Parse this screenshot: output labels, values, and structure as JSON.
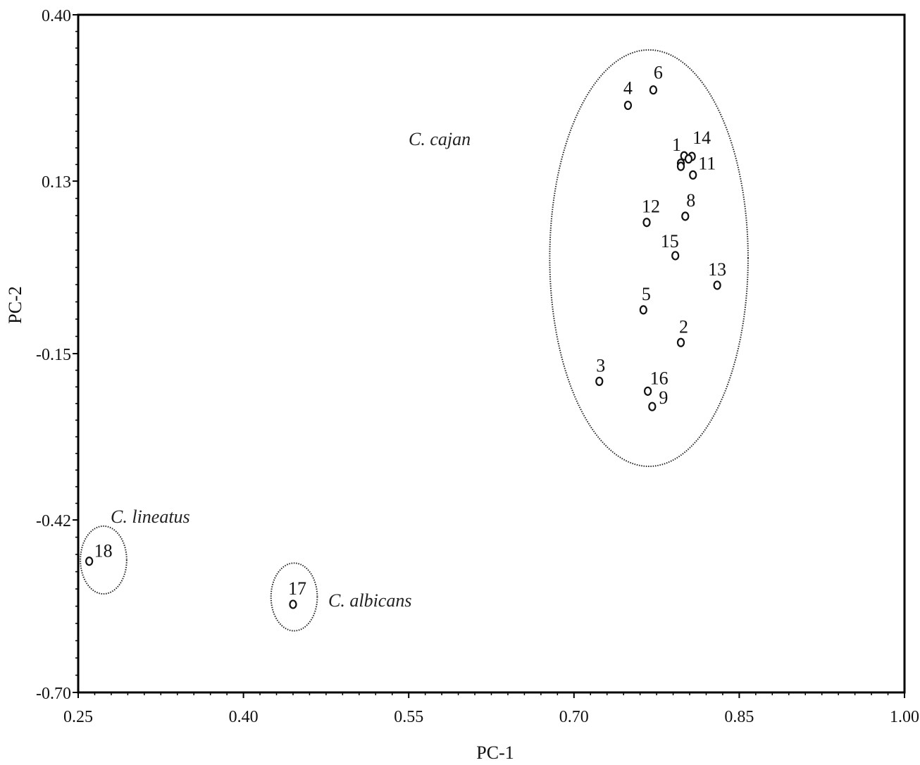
{
  "chart_data": {
    "type": "scatter",
    "xlabel": "PC-1",
    "ylabel": "PC-2",
    "xlim": [
      0.25,
      1.0
    ],
    "ylim": [
      -0.7,
      0.4
    ],
    "x_ticks": [
      "0.25",
      "0.40",
      "0.55",
      "0.70",
      "0.85",
      "1.00"
    ],
    "y_ticks": [
      "0.40",
      "0.13",
      "-0.15",
      "-0.42",
      "-0.70"
    ],
    "grid": false,
    "points": [
      {
        "label": "4",
        "x": 0.749,
        "y": 0.253
      },
      {
        "label": "6",
        "x": 0.772,
        "y": 0.278
      },
      {
        "label": "1",
        "x": 0.797,
        "y": 0.159
      },
      {
        "label": "14",
        "x": 0.807,
        "y": 0.17
      },
      {
        "label": "11",
        "x": 0.808,
        "y": 0.14
      },
      {
        "label": "",
        "x": 0.8,
        "y": 0.171
      },
      {
        "label": "",
        "x": 0.804,
        "y": 0.166
      },
      {
        "label": "",
        "x": 0.797,
        "y": 0.154
      },
      {
        "label": "12",
        "x": 0.766,
        "y": 0.063
      },
      {
        "label": "8",
        "x": 0.801,
        "y": 0.073
      },
      {
        "label": "15",
        "x": 0.792,
        "y": 0.009
      },
      {
        "label": "13",
        "x": 0.83,
        "y": -0.039
      },
      {
        "label": "5",
        "x": 0.763,
        "y": -0.079
      },
      {
        "label": "2",
        "x": 0.797,
        "y": -0.132
      },
      {
        "label": "3",
        "x": 0.723,
        "y": -0.195
      },
      {
        "label": "16",
        "x": 0.767,
        "y": -0.211
      },
      {
        "label": "9",
        "x": 0.771,
        "y": -0.236
      },
      {
        "label": "18",
        "x": 0.26,
        "y": -0.487
      },
      {
        "label": "17",
        "x": 0.445,
        "y": -0.557
      }
    ],
    "groups": [
      {
        "name": "C. cajan",
        "center": [
          0.768,
          0.005
        ],
        "radius": [
          0.09,
          0.338
        ]
      },
      {
        "name": "C. lineatus",
        "center": [
          0.273,
          -0.485
        ],
        "radius": [
          0.021,
          0.055
        ]
      },
      {
        "name": "C. albicans",
        "center": [
          0.446,
          -0.545
        ],
        "radius": [
          0.021,
          0.055
        ]
      }
    ]
  }
}
